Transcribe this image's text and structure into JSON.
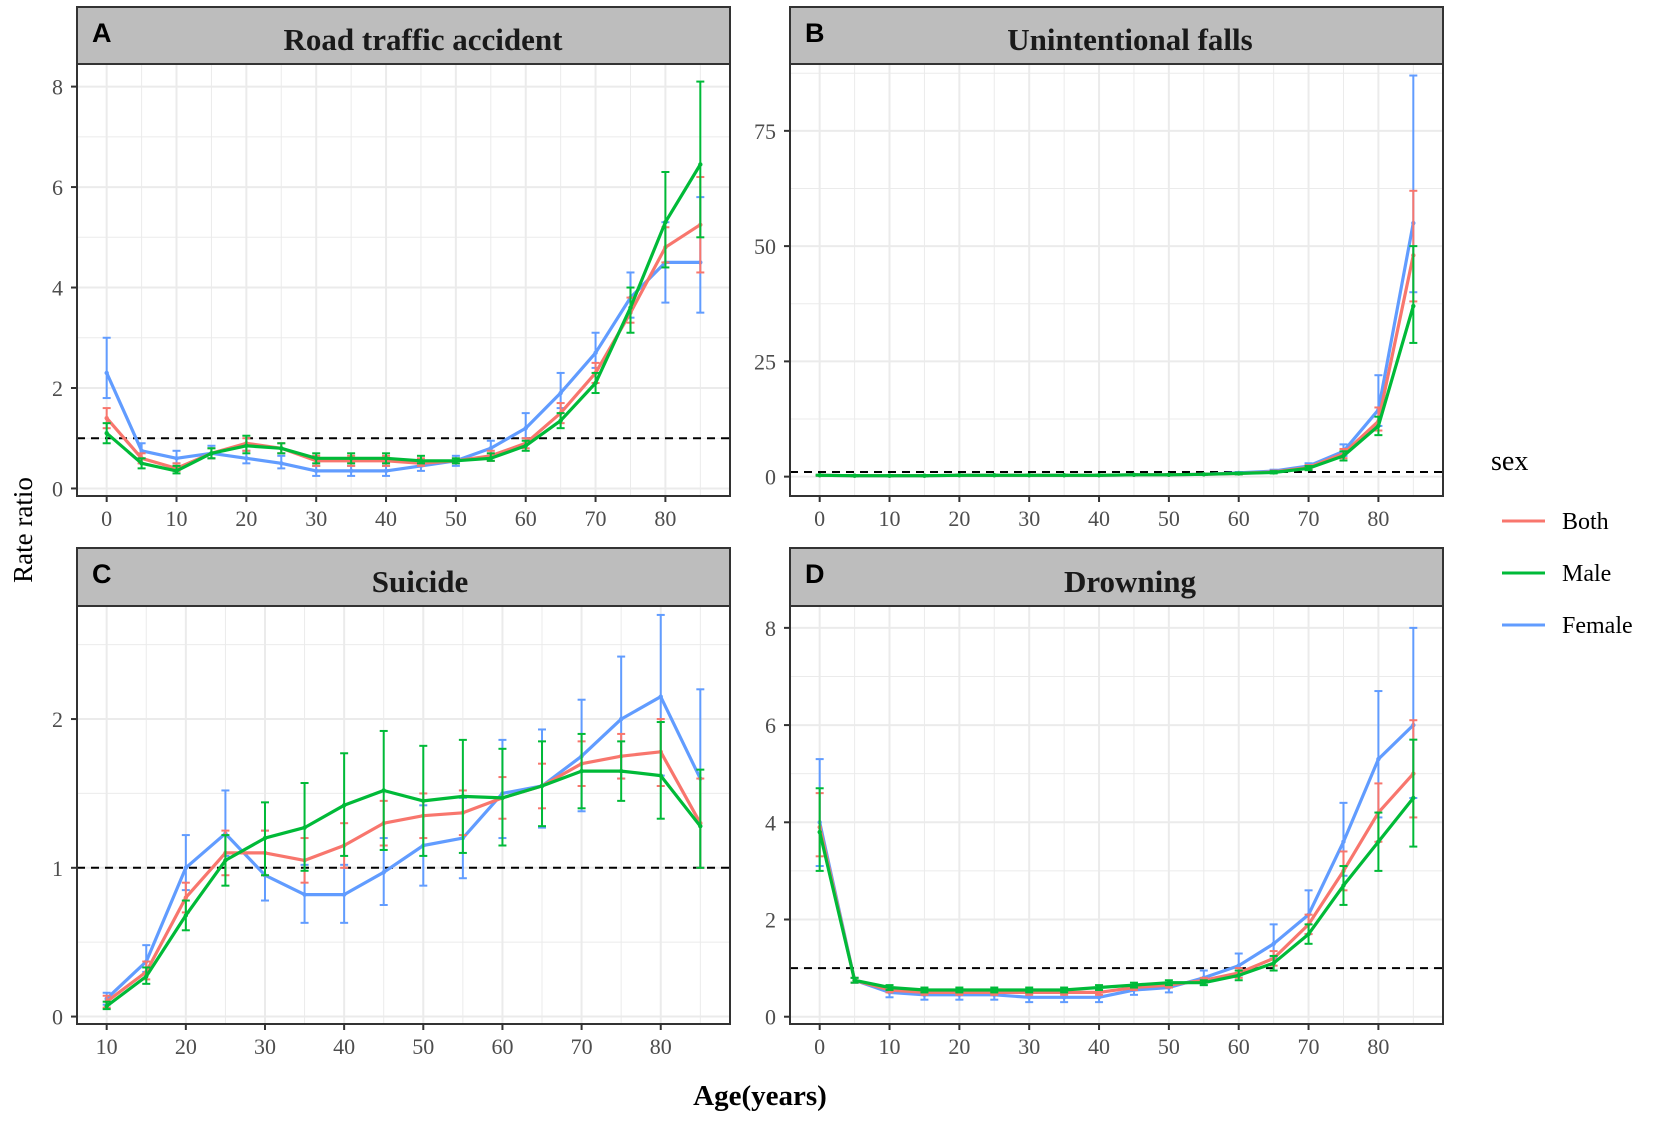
{
  "figure": {
    "x_axis_title": "Age(years)",
    "y_axis_title": "Rate ratio",
    "legend": {
      "title": "sex",
      "items": [
        {
          "label": "Both",
          "color": "#F8766D"
        },
        {
          "label": "Male",
          "color": "#00BA38"
        },
        {
          "label": "Female",
          "color": "#619CFF"
        }
      ]
    },
    "colors": {
      "Both": "#F8766D",
      "Male": "#00BA38",
      "Female": "#619CFF",
      "reference_line": "#000000",
      "strip_fill": "#BDBDBD",
      "grid": "#EBEBEB"
    }
  },
  "chart_data": [
    {
      "type": "line",
      "panel": "A",
      "title": "Road traffic accident",
      "xlabel": "Age(years)",
      "ylabel": "Rate ratio",
      "xlim": [
        -4.25,
        89.25
      ],
      "ylim": [
        -0.15,
        8.45
      ],
      "x_ticks": [
        0,
        10,
        20,
        30,
        40,
        50,
        60,
        70,
        80
      ],
      "y_ticks": [
        0,
        2,
        4,
        6,
        8
      ],
      "reference_line": 1,
      "x": [
        0,
        5,
        10,
        15,
        20,
        25,
        30,
        35,
        40,
        45,
        50,
        55,
        60,
        65,
        70,
        75,
        80,
        85
      ],
      "series": [
        {
          "name": "Both",
          "values": [
            1.4,
            0.6,
            0.4,
            0.7,
            0.9,
            0.8,
            0.55,
            0.55,
            0.55,
            0.5,
            0.55,
            0.65,
            0.9,
            1.5,
            2.3,
            3.5,
            4.8,
            5.25
          ],
          "lower": [
            1.2,
            0.5,
            0.35,
            0.6,
            0.75,
            0.7,
            0.45,
            0.45,
            0.45,
            0.45,
            0.5,
            0.55,
            0.8,
            1.3,
            2.1,
            3.3,
            4.5,
            4.3
          ],
          "upper": [
            1.6,
            0.7,
            0.5,
            0.8,
            1.0,
            0.9,
            0.65,
            0.65,
            0.65,
            0.6,
            0.6,
            0.75,
            1.0,
            1.7,
            2.5,
            3.8,
            5.2,
            6.2
          ]
        },
        {
          "name": "Male",
          "values": [
            1.1,
            0.5,
            0.35,
            0.7,
            0.85,
            0.8,
            0.6,
            0.6,
            0.6,
            0.55,
            0.55,
            0.6,
            0.85,
            1.35,
            2.1,
            3.6,
            5.3,
            6.45
          ],
          "lower": [
            0.9,
            0.4,
            0.3,
            0.6,
            0.7,
            0.7,
            0.5,
            0.5,
            0.5,
            0.5,
            0.5,
            0.55,
            0.75,
            1.2,
            1.9,
            3.1,
            4.4,
            5.0
          ],
          "upper": [
            1.3,
            0.6,
            0.45,
            0.8,
            1.05,
            0.9,
            0.7,
            0.7,
            0.7,
            0.65,
            0.6,
            0.7,
            0.95,
            1.5,
            2.3,
            4.0,
            6.3,
            8.1
          ]
        },
        {
          "name": "Female",
          "values": [
            2.3,
            0.75,
            0.6,
            0.7,
            0.6,
            0.5,
            0.35,
            0.35,
            0.35,
            0.45,
            0.55,
            0.8,
            1.2,
            1.9,
            2.7,
            3.8,
            4.5,
            4.5
          ],
          "lower": [
            1.8,
            0.6,
            0.5,
            0.6,
            0.5,
            0.4,
            0.25,
            0.25,
            0.25,
            0.35,
            0.45,
            0.65,
            1.0,
            1.6,
            2.4,
            3.4,
            3.7,
            3.5
          ],
          "upper": [
            3.0,
            0.9,
            0.75,
            0.85,
            0.75,
            0.65,
            0.45,
            0.45,
            0.45,
            0.55,
            0.65,
            0.95,
            1.5,
            2.3,
            3.1,
            4.3,
            5.3,
            5.8
          ]
        }
      ]
    },
    {
      "type": "line",
      "panel": "B",
      "title": "Unintentional falls",
      "xlabel": "Age(years)",
      "ylabel": "Rate ratio",
      "xlim": [
        -4.25,
        89.25
      ],
      "ylim": [
        -4.2,
        89.5
      ],
      "x_ticks": [
        0,
        10,
        20,
        30,
        40,
        50,
        60,
        70,
        80
      ],
      "y_ticks": [
        0,
        25,
        50,
        75
      ],
      "reference_line": 1,
      "x": [
        0,
        5,
        10,
        15,
        20,
        25,
        30,
        35,
        40,
        45,
        50,
        55,
        60,
        65,
        70,
        75,
        80,
        85
      ],
      "series": [
        {
          "name": "Both",
          "values": [
            0.3,
            0.2,
            0.2,
            0.2,
            0.3,
            0.3,
            0.3,
            0.3,
            0.3,
            0.4,
            0.4,
            0.5,
            0.7,
            1.0,
            2.0,
            5.0,
            12.0,
            48.0
          ],
          "lower": [
            0.2,
            0.1,
            0.1,
            0.1,
            0.2,
            0.2,
            0.2,
            0.2,
            0.2,
            0.3,
            0.3,
            0.4,
            0.5,
            0.8,
            1.5,
            4.0,
            10.0,
            38.0
          ],
          "upper": [
            0.4,
            0.3,
            0.3,
            0.3,
            0.4,
            0.4,
            0.4,
            0.4,
            0.4,
            0.5,
            0.5,
            0.6,
            0.9,
            1.3,
            2.5,
            6.0,
            15.0,
            62.0
          ]
        },
        {
          "name": "Male",
          "values": [
            0.3,
            0.2,
            0.2,
            0.2,
            0.3,
            0.3,
            0.3,
            0.3,
            0.3,
            0.4,
            0.4,
            0.5,
            0.7,
            0.9,
            1.8,
            4.5,
            11.0,
            37.0
          ],
          "lower": [
            0.2,
            0.1,
            0.1,
            0.1,
            0.2,
            0.2,
            0.2,
            0.2,
            0.2,
            0.3,
            0.3,
            0.4,
            0.5,
            0.7,
            1.4,
            3.5,
            9.0,
            29.0
          ],
          "upper": [
            0.4,
            0.3,
            0.3,
            0.3,
            0.4,
            0.4,
            0.4,
            0.4,
            0.4,
            0.5,
            0.5,
            0.6,
            0.9,
            1.2,
            2.3,
            5.5,
            13.0,
            50.0
          ]
        },
        {
          "name": "Female",
          "values": [
            0.3,
            0.2,
            0.2,
            0.2,
            0.3,
            0.3,
            0.3,
            0.3,
            0.3,
            0.4,
            0.4,
            0.5,
            0.8,
            1.2,
            2.3,
            5.5,
            14.5,
            55.0
          ],
          "lower": [
            0.2,
            0.1,
            0.1,
            0.1,
            0.2,
            0.2,
            0.2,
            0.2,
            0.2,
            0.3,
            0.3,
            0.4,
            0.6,
            0.9,
            1.8,
            4.5,
            11.0,
            40.0
          ],
          "upper": [
            0.4,
            0.3,
            0.3,
            0.3,
            0.4,
            0.4,
            0.4,
            0.4,
            0.4,
            0.5,
            0.5,
            0.6,
            1.0,
            1.5,
            2.9,
            7.0,
            22.0,
            87.0
          ]
        }
      ]
    },
    {
      "type": "line",
      "panel": "C",
      "title": "Suicide",
      "xlabel": "Age(years)",
      "ylabel": "Rate ratio",
      "xlim": [
        6.25,
        88.75
      ],
      "ylim": [
        -0.05,
        2.76
      ],
      "x_ticks": [
        10,
        20,
        30,
        40,
        50,
        60,
        70,
        80
      ],
      "y_ticks": [
        0,
        1,
        2
      ],
      "reference_line": 1,
      "x": [
        10,
        15,
        20,
        25,
        30,
        35,
        40,
        45,
        50,
        55,
        60,
        65,
        70,
        75,
        80,
        85
      ],
      "series": [
        {
          "name": "Both",
          "values": [
            0.1,
            0.3,
            0.8,
            1.1,
            1.1,
            1.05,
            1.15,
            1.3,
            1.35,
            1.37,
            1.47,
            1.55,
            1.7,
            1.75,
            1.78,
            1.3
          ],
          "lower": [
            0.06,
            0.25,
            0.7,
            0.95,
            0.95,
            0.9,
            1.0,
            1.15,
            1.2,
            1.22,
            1.33,
            1.4,
            1.55,
            1.6,
            1.55,
            1.0
          ],
          "upper": [
            0.14,
            0.37,
            0.9,
            1.25,
            1.25,
            1.2,
            1.3,
            1.45,
            1.5,
            1.52,
            1.61,
            1.7,
            1.85,
            1.9,
            2.0,
            1.6
          ]
        },
        {
          "name": "Male",
          "values": [
            0.07,
            0.27,
            0.68,
            1.05,
            1.2,
            1.27,
            1.42,
            1.52,
            1.45,
            1.48,
            1.47,
            1.55,
            1.65,
            1.65,
            1.62,
            1.28
          ],
          "lower": [
            0.05,
            0.22,
            0.58,
            0.88,
            0.95,
            0.98,
            1.08,
            1.12,
            1.08,
            1.1,
            1.15,
            1.28,
            1.4,
            1.45,
            1.33,
            1.0
          ],
          "upper": [
            0.1,
            0.33,
            0.78,
            1.22,
            1.44,
            1.57,
            1.77,
            1.92,
            1.82,
            1.86,
            1.8,
            1.85,
            1.9,
            1.85,
            1.98,
            1.66
          ]
        },
        {
          "name": "Female",
          "values": [
            0.12,
            0.37,
            1.0,
            1.23,
            0.95,
            0.82,
            0.82,
            0.97,
            1.15,
            1.2,
            1.5,
            1.55,
            1.75,
            2.0,
            2.15,
            1.6
          ],
          "lower": [
            0.08,
            0.3,
            0.85,
            1.08,
            0.78,
            0.63,
            0.63,
            0.75,
            0.88,
            0.93,
            1.2,
            1.27,
            1.38,
            1.6,
            1.62,
            1.0
          ],
          "upper": [
            0.16,
            0.48,
            1.22,
            1.52,
            1.25,
            1.02,
            1.02,
            1.2,
            1.42,
            1.47,
            1.86,
            1.93,
            2.13,
            2.42,
            2.7,
            2.2
          ]
        }
      ]
    },
    {
      "type": "line",
      "panel": "D",
      "title": "Drowning",
      "xlabel": "Age(years)",
      "ylabel": "Rate ratio",
      "xlim": [
        -4.25,
        89.25
      ],
      "ylim": [
        -0.15,
        8.45
      ],
      "x_ticks": [
        0,
        10,
        20,
        30,
        40,
        50,
        60,
        70,
        80
      ],
      "y_ticks": [
        0,
        2,
        4,
        6,
        8
      ],
      "reference_line": 1,
      "x": [
        0,
        5,
        10,
        15,
        20,
        25,
        30,
        35,
        40,
        45,
        50,
        55,
        60,
        65,
        70,
        75,
        80,
        85
      ],
      "series": [
        {
          "name": "Both",
          "values": [
            3.9,
            0.75,
            0.55,
            0.5,
            0.5,
            0.5,
            0.5,
            0.5,
            0.5,
            0.6,
            0.65,
            0.75,
            0.9,
            1.2,
            1.9,
            3.0,
            4.2,
            5.0
          ],
          "lower": [
            3.3,
            0.7,
            0.5,
            0.45,
            0.45,
            0.45,
            0.45,
            0.45,
            0.45,
            0.55,
            0.6,
            0.7,
            0.8,
            1.05,
            1.7,
            2.6,
            3.6,
            4.1
          ],
          "upper": [
            4.6,
            0.8,
            0.6,
            0.55,
            0.55,
            0.55,
            0.55,
            0.55,
            0.55,
            0.65,
            0.7,
            0.8,
            1.0,
            1.35,
            2.1,
            3.4,
            4.8,
            6.1
          ]
        },
        {
          "name": "Male",
          "values": [
            3.8,
            0.75,
            0.6,
            0.55,
            0.55,
            0.55,
            0.55,
            0.55,
            0.6,
            0.65,
            0.7,
            0.7,
            0.85,
            1.1,
            1.7,
            2.7,
            3.6,
            4.5
          ],
          "lower": [
            3.0,
            0.7,
            0.55,
            0.5,
            0.5,
            0.5,
            0.5,
            0.5,
            0.55,
            0.6,
            0.65,
            0.65,
            0.75,
            0.95,
            1.5,
            2.3,
            3.0,
            3.5
          ],
          "upper": [
            4.7,
            0.8,
            0.65,
            0.6,
            0.6,
            0.6,
            0.6,
            0.6,
            0.65,
            0.7,
            0.75,
            0.75,
            0.95,
            1.25,
            1.9,
            3.1,
            4.2,
            5.7
          ]
        },
        {
          "name": "Female",
          "values": [
            4.0,
            0.75,
            0.5,
            0.45,
            0.45,
            0.45,
            0.4,
            0.4,
            0.4,
            0.55,
            0.6,
            0.8,
            1.05,
            1.5,
            2.1,
            3.6,
            5.3,
            6.0
          ],
          "lower": [
            3.1,
            0.7,
            0.4,
            0.35,
            0.35,
            0.35,
            0.3,
            0.3,
            0.3,
            0.45,
            0.5,
            0.65,
            0.85,
            1.2,
            1.7,
            2.9,
            4.1,
            4.5
          ],
          "upper": [
            5.3,
            0.8,
            0.6,
            0.55,
            0.55,
            0.55,
            0.5,
            0.5,
            0.5,
            0.65,
            0.7,
            0.95,
            1.3,
            1.9,
            2.6,
            4.4,
            6.7,
            8.0
          ]
        }
      ]
    }
  ]
}
